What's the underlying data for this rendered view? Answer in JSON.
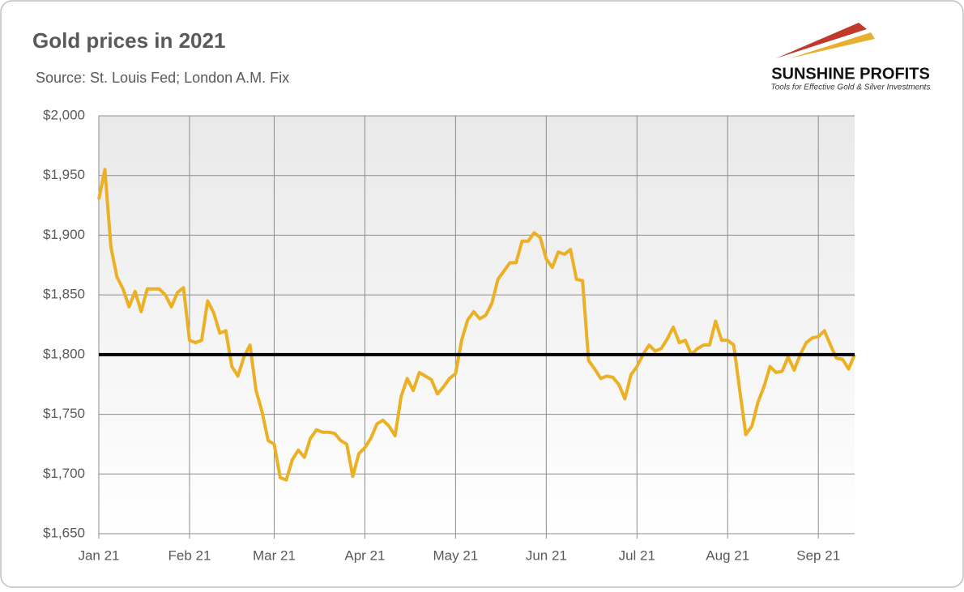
{
  "chart_data": {
    "type": "line",
    "title": "Gold prices in 2021",
    "subtitle": "Source: St. Louis Fed; London A.M. Fix",
    "logo": {
      "name": "SUNSHINE PROFITS",
      "tagline": "Tools for Effective Gold & Silver Investments"
    },
    "categories": [
      "Jan 21",
      null,
      null,
      null,
      null,
      null,
      null,
      null,
      null,
      null,
      null,
      null,
      null,
      null,
      null,
      "Feb 21",
      null,
      null,
      null,
      null,
      null,
      null,
      null,
      null,
      null,
      null,
      null,
      null,
      null,
      "Mar 21",
      null,
      null,
      null,
      null,
      null,
      null,
      null,
      null,
      null,
      null,
      null,
      null,
      null,
      null,
      "Apr 21",
      null,
      null,
      null,
      null,
      null,
      null,
      null,
      null,
      null,
      null,
      null,
      null,
      null,
      null,
      "May 21",
      null,
      null,
      null,
      null,
      null,
      null,
      null,
      null,
      null,
      null,
      null,
      null,
      null,
      null,
      "Jun 21",
      null,
      null,
      null,
      null,
      null,
      null,
      null,
      null,
      null,
      null,
      null,
      null,
      null,
      null,
      "Jul 21",
      null,
      null,
      null,
      null,
      null,
      null,
      null,
      null,
      null,
      null,
      null,
      null,
      null,
      null,
      "Aug 21",
      null,
      null,
      null,
      null,
      null,
      null,
      null,
      null,
      null,
      null,
      null,
      null,
      null,
      null,
      "Sep 21",
      null,
      null,
      null,
      null,
      null,
      null
    ],
    "series": [
      {
        "name": "Gold price",
        "color": "#EBB023",
        "values": [
          1930,
          1955,
          1890,
          1865,
          1855,
          1840,
          1853,
          1836,
          1855,
          1855,
          1855,
          1850,
          1840,
          1852,
          1856,
          1812,
          1810,
          1812,
          1845,
          1835,
          1818,
          1820,
          1790,
          1782,
          1798,
          1808,
          1770,
          1752,
          1728,
          1725,
          1697,
          1695,
          1712,
          1720,
          1714,
          1730,
          1737,
          1735,
          1735,
          1734,
          1728,
          1725,
          1698,
          1717,
          1722,
          1730,
          1742,
          1745,
          1740,
          1732,
          1765,
          1780,
          1770,
          1785,
          1782,
          1779,
          1767,
          1773,
          1780,
          1784,
          1812,
          1829,
          1836,
          1830,
          1833,
          1843,
          1863,
          1870,
          1877,
          1877,
          1895,
          1895,
          1902,
          1898,
          1880,
          1873,
          1886,
          1884,
          1888,
          1863,
          1862,
          1795,
          1788,
          1780,
          1782,
          1781,
          1775,
          1763,
          1783,
          1790,
          1800,
          1808,
          1803,
          1805,
          1813,
          1823,
          1810,
          1812,
          1800,
          1805,
          1808,
          1808,
          1828,
          1812,
          1812,
          1808,
          1770,
          1733,
          1740,
          1760,
          1773,
          1790,
          1785,
          1786,
          1798,
          1787,
          1800,
          1810,
          1814,
          1815,
          1820,
          1808,
          1797,
          1796,
          1788,
          1800
        ]
      }
    ],
    "reference_line": 1800,
    "ylim": [
      1650,
      2000
    ],
    "yticks": [
      {
        "value": 1650,
        "label": "$1,650"
      },
      {
        "value": 1700,
        "label": "$1,700"
      },
      {
        "value": 1750,
        "label": "$1,750"
      },
      {
        "value": 1800,
        "label": "$1,800"
      },
      {
        "value": 1850,
        "label": "$1,850"
      },
      {
        "value": 1900,
        "label": "$1,900"
      },
      {
        "value": 1950,
        "label": "$1,950"
      },
      {
        "value": 2000,
        "label": "$2,000"
      }
    ],
    "grid": true
  }
}
